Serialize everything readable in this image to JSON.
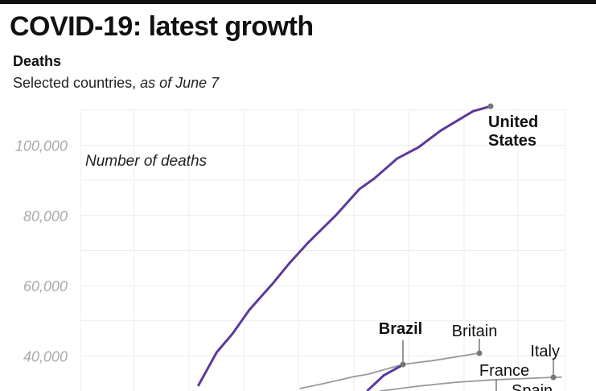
{
  "header": {
    "title": "COVID-19: latest growth",
    "subtitle_bold": "Deaths",
    "subtitle_plain": "Selected countries, ",
    "subtitle_italic": "as of June 7"
  },
  "chart_data": {
    "type": "line",
    "title": "COVID-19: latest growth",
    "ylabel": "Number of deaths",
    "xlabel": "",
    "ylim": [
      0,
      110000
    ],
    "xlim": [
      0,
      88
    ],
    "yticks": [
      40000,
      60000,
      80000,
      100000
    ],
    "ytick_labels": [
      "40,000",
      "60,000",
      "80,000",
      "100,000"
    ],
    "grid": true,
    "colors": {
      "highlight": "#5b3a9c",
      "other": "#9a9a9a",
      "dot": "#777777"
    },
    "series": [
      {
        "name": "United States",
        "label_lines": [
          "United",
          "States"
        ],
        "highlight": true,
        "x": [
          21.5,
          24.9,
          27.8,
          30.9,
          35.1,
          38.1,
          41.6,
          46.8,
          51.0,
          53.7,
          57.9,
          61.8,
          65.9,
          71.8,
          75.0
        ],
        "y": [
          31400,
          41000,
          46300,
          53150,
          60500,
          66200,
          72200,
          80200,
          87500,
          90500,
          96200,
          99400,
          104200,
          109700,
          111100
        ]
      },
      {
        "name": "Brazil",
        "label_lines": [
          "Brazil"
        ],
        "highlight": true,
        "x": [
          52.4,
          55.5,
          59.1
        ],
        "y": [
          30000,
          34500,
          37600
        ]
      },
      {
        "name": "Britain",
        "label_lines": [
          "Britain"
        ],
        "highlight": false,
        "x": [
          40.1,
          44.4,
          50.0,
          52.6,
          59.0,
          64.6,
          72.9
        ],
        "y": [
          30700,
          32100,
          34100,
          34800,
          37600,
          38700,
          40800
        ]
      },
      {
        "name": "Italy",
        "label_lines": [
          "Italy"
        ],
        "highlight": false,
        "x": [
          54.8,
          61.8,
          68.7,
          75.6,
          86.5
        ],
        "y": [
          30000,
          31400,
          32500,
          33200,
          33900
        ]
      },
      {
        "name": "France",
        "label_lines": [
          "France"
        ],
        "highlight": false,
        "x": [],
        "y": []
      },
      {
        "name": "Spain",
        "label_lines": [
          "Spain"
        ],
        "highlight": false,
        "x": [],
        "y": []
      }
    ]
  }
}
